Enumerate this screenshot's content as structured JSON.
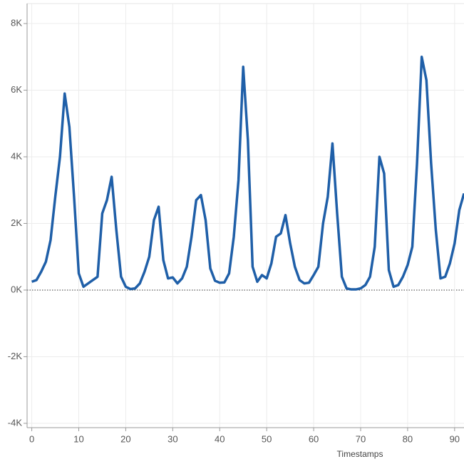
{
  "chart_data": {
    "type": "line",
    "x_label": "Timestamps",
    "x": [
      0,
      1,
      2,
      3,
      4,
      5,
      6,
      7,
      8,
      9,
      10,
      11,
      12,
      13,
      14,
      15,
      16,
      17,
      18,
      19,
      20,
      21,
      22,
      23,
      24,
      25,
      26,
      27,
      28,
      29,
      30,
      31,
      32,
      33,
      34,
      35,
      36,
      37,
      38,
      39,
      40,
      41,
      42,
      43,
      44,
      45,
      46,
      47,
      48,
      49,
      50,
      51,
      52,
      53,
      54,
      55,
      56,
      57,
      58,
      59,
      60,
      61,
      62,
      63,
      64,
      65,
      66,
      67,
      68,
      69,
      70,
      71,
      72,
      73,
      74,
      75,
      76,
      77,
      78,
      79,
      80,
      81,
      82,
      83,
      84,
      85,
      86,
      87,
      88,
      89,
      90,
      91,
      92
    ],
    "series": [
      {
        "color": "#1f5fa8",
        "values": [
          250,
          300,
          550,
          850,
          1500,
          2800,
          4000,
          5900,
          4900,
          2800,
          500,
          100,
          200,
          300,
          400,
          2300,
          2700,
          3400,
          1800,
          400,
          100,
          30,
          50,
          200,
          550,
          1000,
          2100,
          2500,
          900,
          350,
          380,
          200,
          350,
          700,
          1600,
          2700,
          2850,
          2100,
          650,
          280,
          220,
          230,
          500,
          1600,
          3300,
          6700,
          4500,
          700,
          250,
          450,
          350,
          800,
          1600,
          1700,
          2250,
          1400,
          700,
          300,
          200,
          220,
          450,
          700,
          2000,
          2800,
          4400,
          2300,
          400,
          50,
          20,
          20,
          50,
          150,
          400,
          1300,
          4000,
          3500,
          600,
          100,
          150,
          400,
          750,
          1300,
          3800,
          7000,
          6300,
          3800,
          1800,
          350,
          400,
          800,
          1400,
          2400,
          2900
        ]
      }
    ],
    "xlim": [
      -1,
      92
    ],
    "xticks": [
      0,
      10,
      20,
      30,
      40,
      50,
      60,
      70,
      80,
      90
    ],
    "ylim": [
      -4130,
      8600
    ],
    "yticks": [
      {
        "value": -4000,
        "label": "-4K"
      },
      {
        "value": -2000,
        "label": "-2K"
      },
      {
        "value": 0,
        "label": "0K"
      },
      {
        "value": 2000,
        "label": "2K"
      },
      {
        "value": 4000,
        "label": "4K"
      },
      {
        "value": 6000,
        "label": "6K"
      },
      {
        "value": 8000,
        "label": "8K"
      }
    ],
    "grid": true
  }
}
